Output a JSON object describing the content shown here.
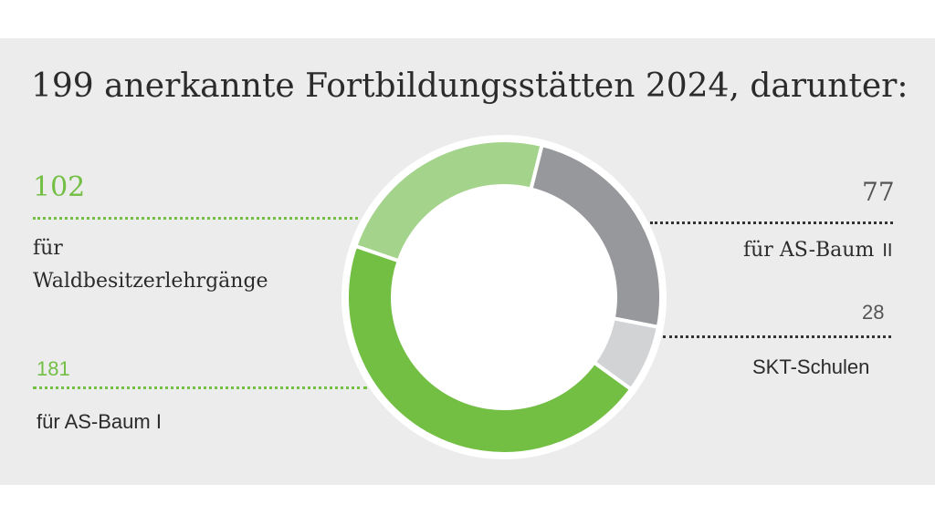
{
  "title": "199 anerkannte Fortbildungsstätten 2024, darunter:",
  "colors": {
    "green_dark": "#72bf44",
    "green_light": "#a4d38b",
    "gray_dark": "#97989b",
    "gray_light": "#d2d3d5",
    "text": "#2b2b2b"
  },
  "chart_data": {
    "type": "donut",
    "title": "199 anerkannte Fortbildungsstätten 2024, darunter:",
    "total": 199,
    "series": [
      {
        "label_value": "102",
        "label_text_1": "für",
        "label_text_2": "Waldbesitzerlehrgänge",
        "value": 102
      },
      {
        "label_value": "77",
        "label_text_1": "für  AS-Baum",
        "label_text_2": "II",
        "value": 77
      },
      {
        "label_value": "28",
        "label_text_1": "SKT-Schulen",
        "value": 28
      },
      {
        "label_value": "181",
        "label_text_1": "für AS-Baum I",
        "value": 181
      }
    ]
  }
}
